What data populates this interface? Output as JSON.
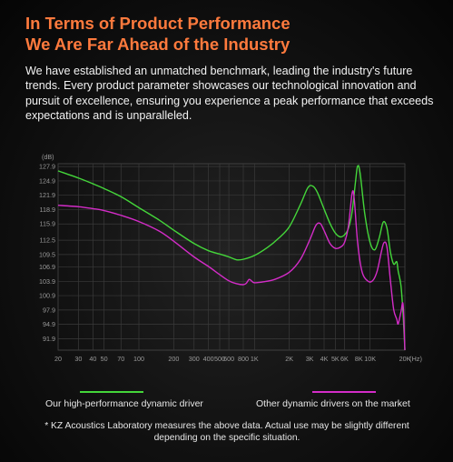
{
  "header": {
    "title_line1": "In Terms of Product Performance",
    "title_line2": "We Are Far Ahead of the Industry",
    "description": "We have established an unmatched benchmark, leading the industry's future trends. Every product parameter showcases our technological innovation and pursuit of excellence, ensuring you experience a peak performance that exceeds expectations and is unparalleled."
  },
  "colors": {
    "title": "#ff7a3d",
    "our_driver": "#44d63a",
    "other_driver": "#d42cc8"
  },
  "chart_data": {
    "type": "line",
    "y_unit_label": "(dB)",
    "x_unit_label": "(Hz)",
    "x_scale": "log",
    "xlim": [
      20,
      20000
    ],
    "ylim": [
      89.5,
      128.5
    ],
    "grid": true,
    "y_ticks": [
      "127.9",
      "124.9",
      "121.9",
      "118.9",
      "115.9",
      "112.5",
      "109.5",
      "106.9",
      "103.9",
      "100.9",
      "97.9",
      "94.9",
      "91.9"
    ],
    "x_ticks": [
      {
        "label": "20",
        "hz": 20
      },
      {
        "label": "30",
        "hz": 30
      },
      {
        "label": "40",
        "hz": 40
      },
      {
        "label": "50",
        "hz": 50
      },
      {
        "label": "70",
        "hz": 70
      },
      {
        "label": "100",
        "hz": 100
      },
      {
        "label": "200",
        "hz": 200
      },
      {
        "label": "300",
        "hz": 300
      },
      {
        "label": "400",
        "hz": 400
      },
      {
        "label": "500",
        "hz": 500
      },
      {
        "label": "600",
        "hz": 600
      },
      {
        "label": "800",
        "hz": 800
      },
      {
        "label": "1K",
        "hz": 1000
      },
      {
        "label": "2K",
        "hz": 2000
      },
      {
        "label": "3K",
        "hz": 3000
      },
      {
        "label": "4K",
        "hz": 4000
      },
      {
        "label": "5K",
        "hz": 5000
      },
      {
        "label": "6K",
        "hz": 6000
      },
      {
        "label": "8K",
        "hz": 8000
      },
      {
        "label": "10K",
        "hz": 10000
      },
      {
        "label": "20K",
        "hz": 20000
      }
    ],
    "series": [
      {
        "name": "Our high-performance dynamic driver",
        "color": "#44d63a",
        "points": [
          [
            20,
            127
          ],
          [
            30,
            125.5
          ],
          [
            40,
            124.3
          ],
          [
            50,
            123.3
          ],
          [
            70,
            121.6
          ],
          [
            100,
            119.3
          ],
          [
            150,
            116.7
          ],
          [
            200,
            114.6
          ],
          [
            300,
            111.8
          ],
          [
            400,
            110.3
          ],
          [
            500,
            109.6
          ],
          [
            600,
            109.0
          ],
          [
            700,
            108.4
          ],
          [
            800,
            108.5
          ],
          [
            1000,
            109.3
          ],
          [
            1300,
            111.0
          ],
          [
            1600,
            112.8
          ],
          [
            2000,
            115.3
          ],
          [
            2500,
            120.0
          ],
          [
            2900,
            123.5
          ],
          [
            3200,
            123.8
          ],
          [
            3500,
            122.5
          ],
          [
            4000,
            119.0
          ],
          [
            4500,
            116.0
          ],
          [
            5000,
            114.0
          ],
          [
            5500,
            113.2
          ],
          [
            6000,
            113.6
          ],
          [
            6500,
            115.0
          ],
          [
            7000,
            118.5
          ],
          [
            7500,
            125.0
          ],
          [
            7800,
            128.0
          ],
          [
            8200,
            126.5
          ],
          [
            9000,
            118.0
          ],
          [
            10000,
            112.0
          ],
          [
            11000,
            110.5
          ],
          [
            12000,
            113.0
          ],
          [
            13000,
            116.3
          ],
          [
            14000,
            115.0
          ],
          [
            15000,
            110.0
          ],
          [
            16000,
            107.5
          ],
          [
            17000,
            108.0
          ],
          [
            17500,
            106.0
          ],
          [
            18500,
            103.0
          ],
          [
            19300,
            97.0
          ],
          [
            20000,
            89.5
          ]
        ]
      },
      {
        "name": "Other dynamic drivers on the market",
        "color": "#d42cc8",
        "points": [
          [
            20,
            119.8
          ],
          [
            30,
            119.5
          ],
          [
            40,
            119.1
          ],
          [
            50,
            118.7
          ],
          [
            70,
            117.7
          ],
          [
            100,
            116.4
          ],
          [
            150,
            114.4
          ],
          [
            200,
            112.3
          ],
          [
            300,
            109.0
          ],
          [
            400,
            107.0
          ],
          [
            500,
            105.3
          ],
          [
            600,
            104.0
          ],
          [
            700,
            103.4
          ],
          [
            800,
            103.2
          ],
          [
            850,
            103.5
          ],
          [
            900,
            104.3
          ],
          [
            950,
            103.9
          ],
          [
            1000,
            103.6
          ],
          [
            1200,
            103.8
          ],
          [
            1500,
            104.3
          ],
          [
            2000,
            105.8
          ],
          [
            2500,
            108.5
          ],
          [
            3000,
            112.5
          ],
          [
            3400,
            115.6
          ],
          [
            3700,
            116.0
          ],
          [
            4000,
            114.5
          ],
          [
            4500,
            111.8
          ],
          [
            5000,
            110.8
          ],
          [
            5500,
            111.0
          ],
          [
            6000,
            112.0
          ],
          [
            6500,
            115.5
          ],
          [
            7000,
            122.4
          ],
          [
            7300,
            121.0
          ],
          [
            7800,
            112.0
          ],
          [
            8500,
            106.0
          ],
          [
            9500,
            104.0
          ],
          [
            10500,
            104.0
          ],
          [
            11500,
            106.0
          ],
          [
            12500,
            110.0
          ],
          [
            13200,
            112.0
          ],
          [
            14000,
            111.0
          ],
          [
            15000,
            104.0
          ],
          [
            16000,
            98.0
          ],
          [
            17000,
            96.0
          ],
          [
            17500,
            95.0
          ],
          [
            18500,
            97.5
          ],
          [
            19300,
            99.0
          ],
          [
            20000,
            89.5
          ]
        ]
      }
    ]
  },
  "legend": {
    "our_label": "Our high-performance dynamic driver",
    "other_label": "Other dynamic drivers on the market"
  },
  "footnote": "* KZ Acoustics Laboratory measures the above data. Actual use may be slightly different depending on the specific situation."
}
